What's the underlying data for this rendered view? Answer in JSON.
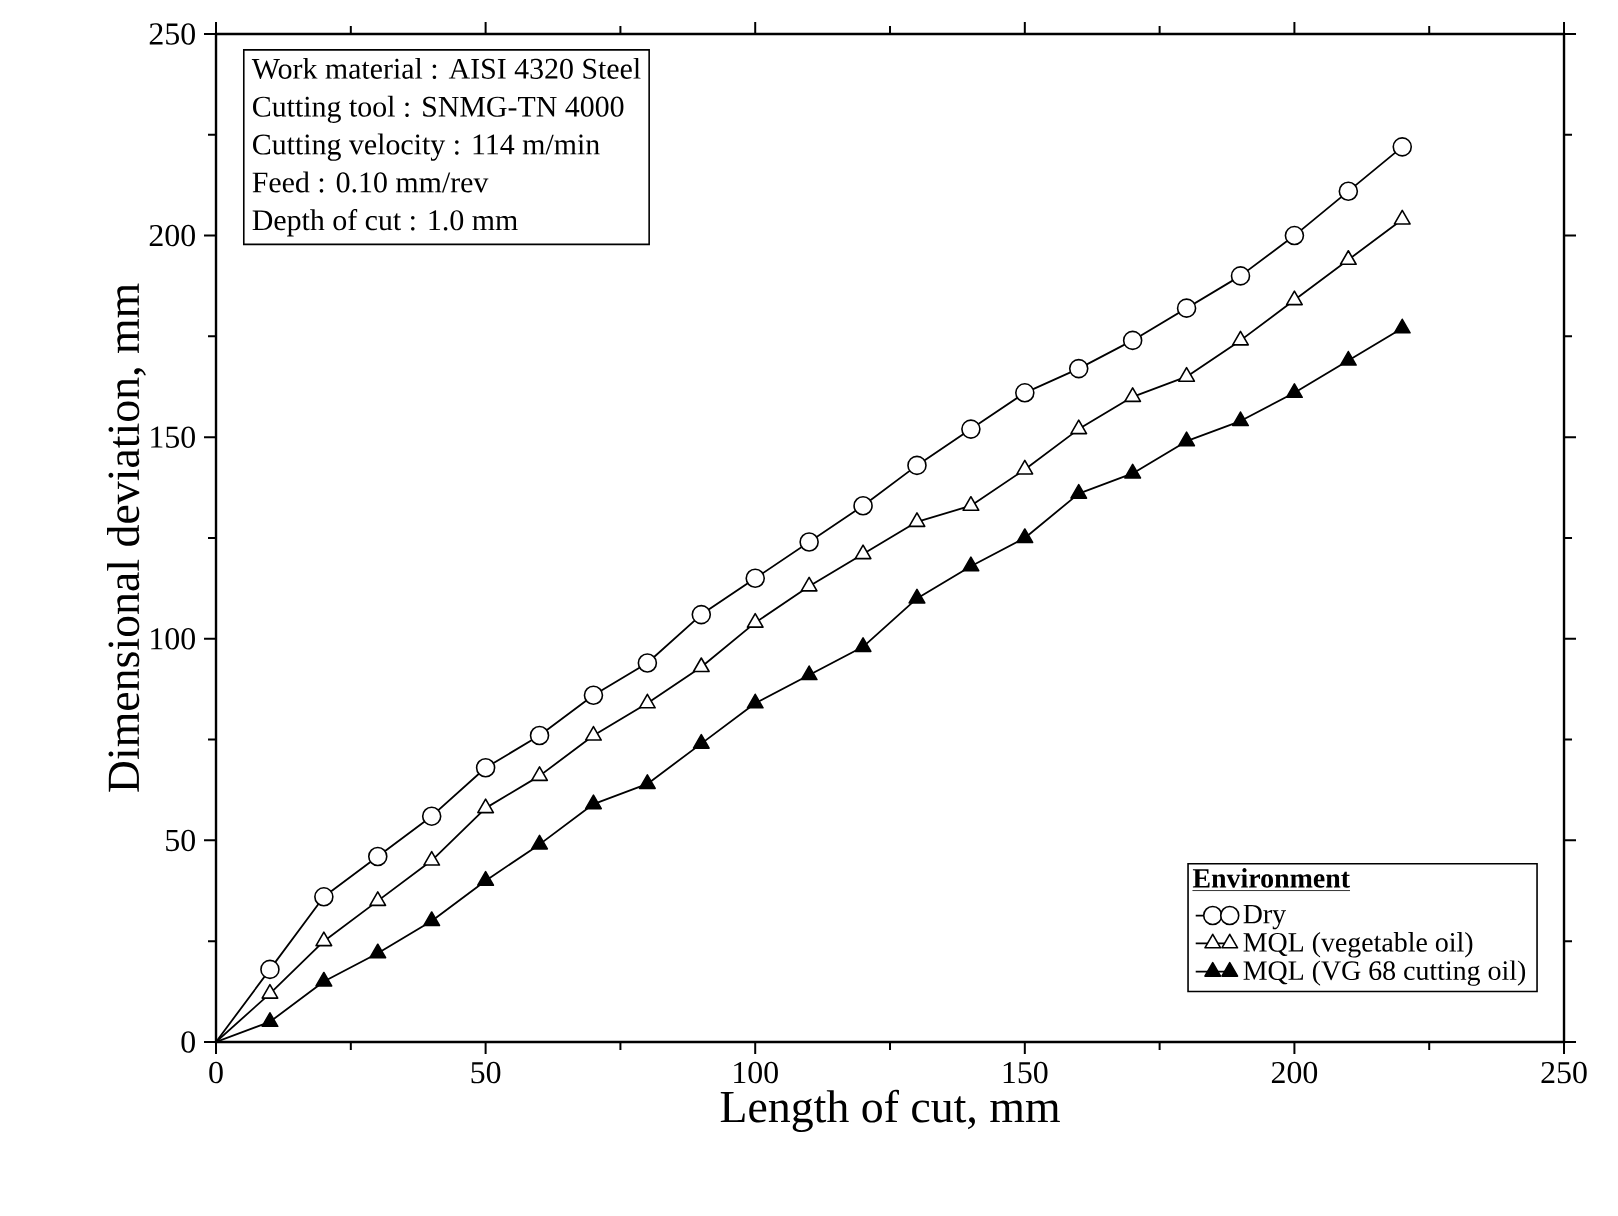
{
  "chart_data": {
    "type": "line",
    "xlabel": "Length of cut, mm",
    "ylabel": "Dimensional deviation, mm",
    "legend_title": "Environment",
    "x": [
      0,
      10,
      20,
      30,
      40,
      50,
      60,
      70,
      80,
      90,
      100,
      110,
      120,
      130,
      140,
      150,
      160,
      170,
      180,
      190,
      200,
      210,
      220
    ],
    "series": [
      {
        "name": "Dry",
        "color": "#000000",
        "marker": "circle",
        "values": [
          0,
          18,
          36,
          46,
          56,
          68,
          76,
          86,
          94,
          106,
          115,
          124,
          133,
          143,
          152,
          161,
          167,
          174,
          182,
          190,
          200,
          211,
          222
        ]
      },
      {
        "name": "MQL (vegetable oil)",
        "color": "#000000",
        "marker": "triangle",
        "values": [
          0,
          12,
          25,
          35,
          45,
          58,
          66,
          76,
          84,
          93,
          104,
          113,
          121,
          129,
          133,
          142,
          152,
          160,
          165,
          174,
          184,
          194,
          204
        ]
      },
      {
        "name": "MQL (VG 68 cutting oil)",
        "color": "#000000",
        "marker": "triangle",
        "values": [
          0,
          5,
          15,
          22,
          30,
          40,
          49,
          59,
          64,
          74,
          84,
          91,
          98,
          110,
          118,
          125,
          136,
          141,
          149,
          154,
          161,
          169,
          177
        ]
      }
    ],
    "xlim": [
      0,
      250
    ],
    "ylim": [
      0,
      250
    ],
    "xticks": [
      0,
      50,
      100,
      150,
      200,
      250
    ],
    "yticks": [
      0,
      50,
      100,
      150,
      200,
      250
    ],
    "grid": false,
    "legend": "bottom right",
    "line_style": "solid",
    "annotations": [
      "Work material : AISI 4320 Steel",
      "Cutting tool : SNMG-TN 4000",
      "Cutting velocity : 114 m/min",
      "Feed : 0.10 mm/rev",
      "Depth of cut : 1.0 mm"
    ]
  }
}
